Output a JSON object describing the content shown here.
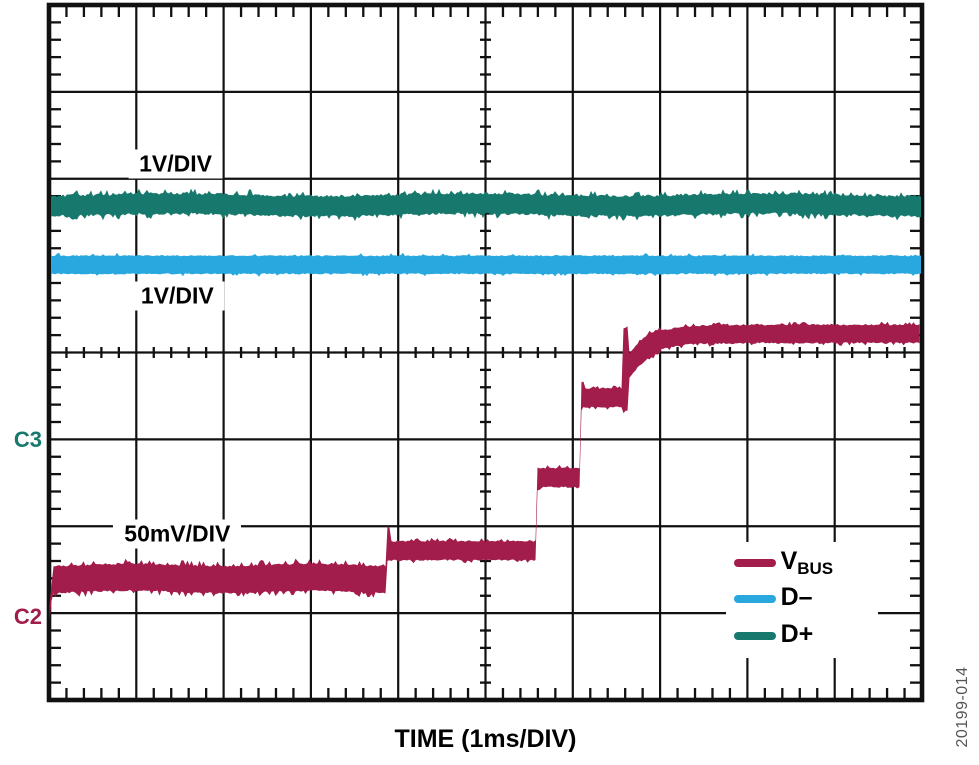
{
  "figure": {
    "xlabel": "TIME (1ms/DIV)",
    "figure_number": "20199-014"
  },
  "colors": {
    "background": "#FFFFFF",
    "grid": "#111111",
    "label_text": "#000000",
    "figure_number_text": "#55565A",
    "vbus": "#A21D4B",
    "dminus": "#29A8DF",
    "dplus": "#17796E"
  },
  "scale_labels": [
    {
      "text": "1V/DIV",
      "x_div": 1.45,
      "y_div": 1.83,
      "refers_to": "D+"
    },
    {
      "text": "1V/DIV",
      "x_div": 1.47,
      "y_div": 3.35,
      "refers_to": "D–"
    },
    {
      "text": "50mV/DIV",
      "x_div": 1.47,
      "y_div": 6.09,
      "refers_to": "VBUS"
    }
  ],
  "channel_markers": [
    {
      "label": "C3",
      "color_key": "dplus",
      "y_div": 5.01
    },
    {
      "label": "C2",
      "color_key": "vbus",
      "y_div": 7.05
    }
  ],
  "legend": {
    "x_div": 7.75,
    "y_div": 6.18,
    "items": [
      {
        "main": "V",
        "sub": "BUS",
        "color_key": "vbus"
      },
      {
        "main": "D–",
        "sub": "",
        "color_key": "dminus"
      },
      {
        "main": "D+",
        "sub": "",
        "color_key": "dplus"
      }
    ]
  },
  "chart_data": {
    "type": "line",
    "title": "",
    "xlabel": "TIME (1ms/DIV)",
    "grid": true,
    "legend_position": "lower-right-inside",
    "x_axis": {
      "divisions": 10,
      "per_division": "1ms",
      "minor_per_division": 5
    },
    "y_axis": {
      "divisions": 8,
      "minor_per_division": 5
    },
    "series": [
      {
        "name": "VBUS",
        "channel": "C2",
        "scale": "50mV/DIV",
        "color_key": "vbus",
        "style": "staircase",
        "reference_y_div": 7.05,
        "approx_step_levels_mV_above_C2": [
          22,
          38,
          80,
          126,
          163
        ],
        "step_times_div": [
          0.0,
          3.87,
          5.58,
          6.08,
          6.57
        ],
        "segments": [
          {
            "type": "ramp",
            "x_div": [
              0.0,
              0.046
            ],
            "from_div": 7.05,
            "to_div": 6.6
          },
          {
            "type": "flat",
            "x_div": [
              0.046,
              3.872
            ],
            "level_div": 6.6,
            "band_div": 0.32
          },
          {
            "type": "spike",
            "x_div": [
              3.872,
              3.92
            ],
            "top_div": 6.02
          },
          {
            "type": "flat",
            "x_div": [
              3.872,
              5.577
            ],
            "level_div": 6.28,
            "band_div": 0.23
          },
          {
            "type": "flat",
            "x_div": [
              5.577,
              6.081
            ],
            "level_div": 5.44,
            "band_div": 0.23
          },
          {
            "type": "spike",
            "x_div": [
              6.081,
              6.13
            ],
            "top_div": 4.35
          },
          {
            "type": "flat",
            "x_div": [
              6.081,
              6.573
            ],
            "level_div": 4.52,
            "band_div": 0.23
          },
          {
            "type": "burst",
            "x_div": [
              6.573,
              6.63
            ],
            "level_div": 4.21,
            "band_div": 0.92
          },
          {
            "type": "exp_settle",
            "x_div": [
              6.63,
              10.0
            ],
            "start_div": 4.19,
            "settle_div": 3.785,
            "tau_div": 0.23,
            "band_div": 0.22
          }
        ]
      },
      {
        "name": "D–",
        "channel": null,
        "scale": "1V/DIV",
        "color_key": "dminus",
        "style": "solid-flat",
        "level_div": 2.99,
        "band_div": 0.23,
        "x_span_div": [
          0,
          10
        ],
        "approx_volts_above_C3": 2.0
      },
      {
        "name": "D+",
        "channel": "C3",
        "scale": "1V/DIV",
        "color_key": "dplus",
        "style": "noisy-flat",
        "level_div": 2.3,
        "band_div": 0.24,
        "x_span_div": [
          0,
          10
        ],
        "approx_volts_above_C3": 2.7
      }
    ]
  }
}
